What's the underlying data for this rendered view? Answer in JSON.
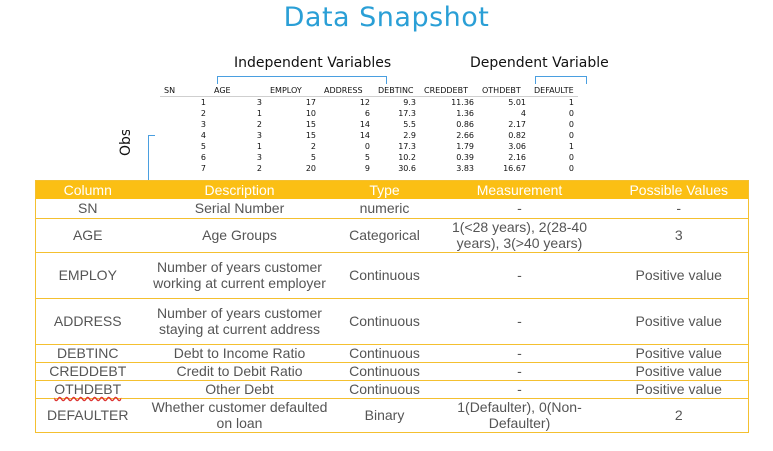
{
  "page": {
    "title": "Data Snapshot"
  },
  "annotations": {
    "independent_label": "Independent Variables",
    "dependent_label": "Dependent Variable",
    "observations_label": "Observations"
  },
  "snapshot": {
    "headers": [
      "SN",
      "AGE",
      "EMPLOY",
      "ADDRESS",
      "DEBTINC",
      "CREDDEBT",
      "OTHDEBT",
      "DEFAULTE"
    ],
    "rows": [
      [
        "1",
        "3",
        "17",
        "12",
        "9.3",
        "11.36",
        "5.01",
        "1"
      ],
      [
        "2",
        "1",
        "10",
        "6",
        "17.3",
        "1.36",
        "4",
        "0"
      ],
      [
        "3",
        "2",
        "15",
        "14",
        "5.5",
        "0.86",
        "2.17",
        "0"
      ],
      [
        "4",
        "3",
        "15",
        "14",
        "2.9",
        "2.66",
        "0.82",
        "0"
      ],
      [
        "5",
        "1",
        "2",
        "0",
        "17.3",
        "1.79",
        "3.06",
        "1"
      ],
      [
        "6",
        "3",
        "5",
        "5",
        "10.2",
        "0.39",
        "2.16",
        "0"
      ],
      [
        "7",
        "2",
        "20",
        "9",
        "30.6",
        "3.83",
        "16.67",
        "0"
      ]
    ]
  },
  "description_table": {
    "headers": [
      "Column",
      "Description",
      "Type",
      "Measurement",
      "Possible Values"
    ],
    "rows": [
      [
        "SN",
        "Serial Number",
        "numeric",
        "-",
        "-"
      ],
      [
        "AGE",
        "Age Groups",
        "Categorical",
        "1(<28 years), 2(28-40 years), 3(>40 years)",
        "3"
      ],
      [
        "EMPLOY",
        "Number of years customer working at current employer",
        "Continuous",
        "-",
        "Positive value"
      ],
      [
        "ADDRESS",
        "Number of years customer staying at current address",
        "Continuous",
        "-",
        "Positive value"
      ],
      [
        "DEBTINC",
        "Debt to Income Ratio",
        "Continuous",
        "-",
        "Positive value"
      ],
      [
        "CREDDEBT",
        "Credit to Debit Ratio",
        "Continuous",
        "-",
        "Positive value"
      ],
      [
        "OTHDEBT",
        "Other Debt",
        "Continuous",
        "-",
        "Positive value"
      ],
      [
        "DEFAULTER",
        "Whether customer defaulted on loan",
        "Binary",
        "1(Defaulter), 0(Non-Defaulter)",
        "2"
      ]
    ]
  },
  "colors": {
    "title": "#2a9fd6",
    "header_bg": "#fbbf14",
    "bracket": "#4a9fe0"
  }
}
